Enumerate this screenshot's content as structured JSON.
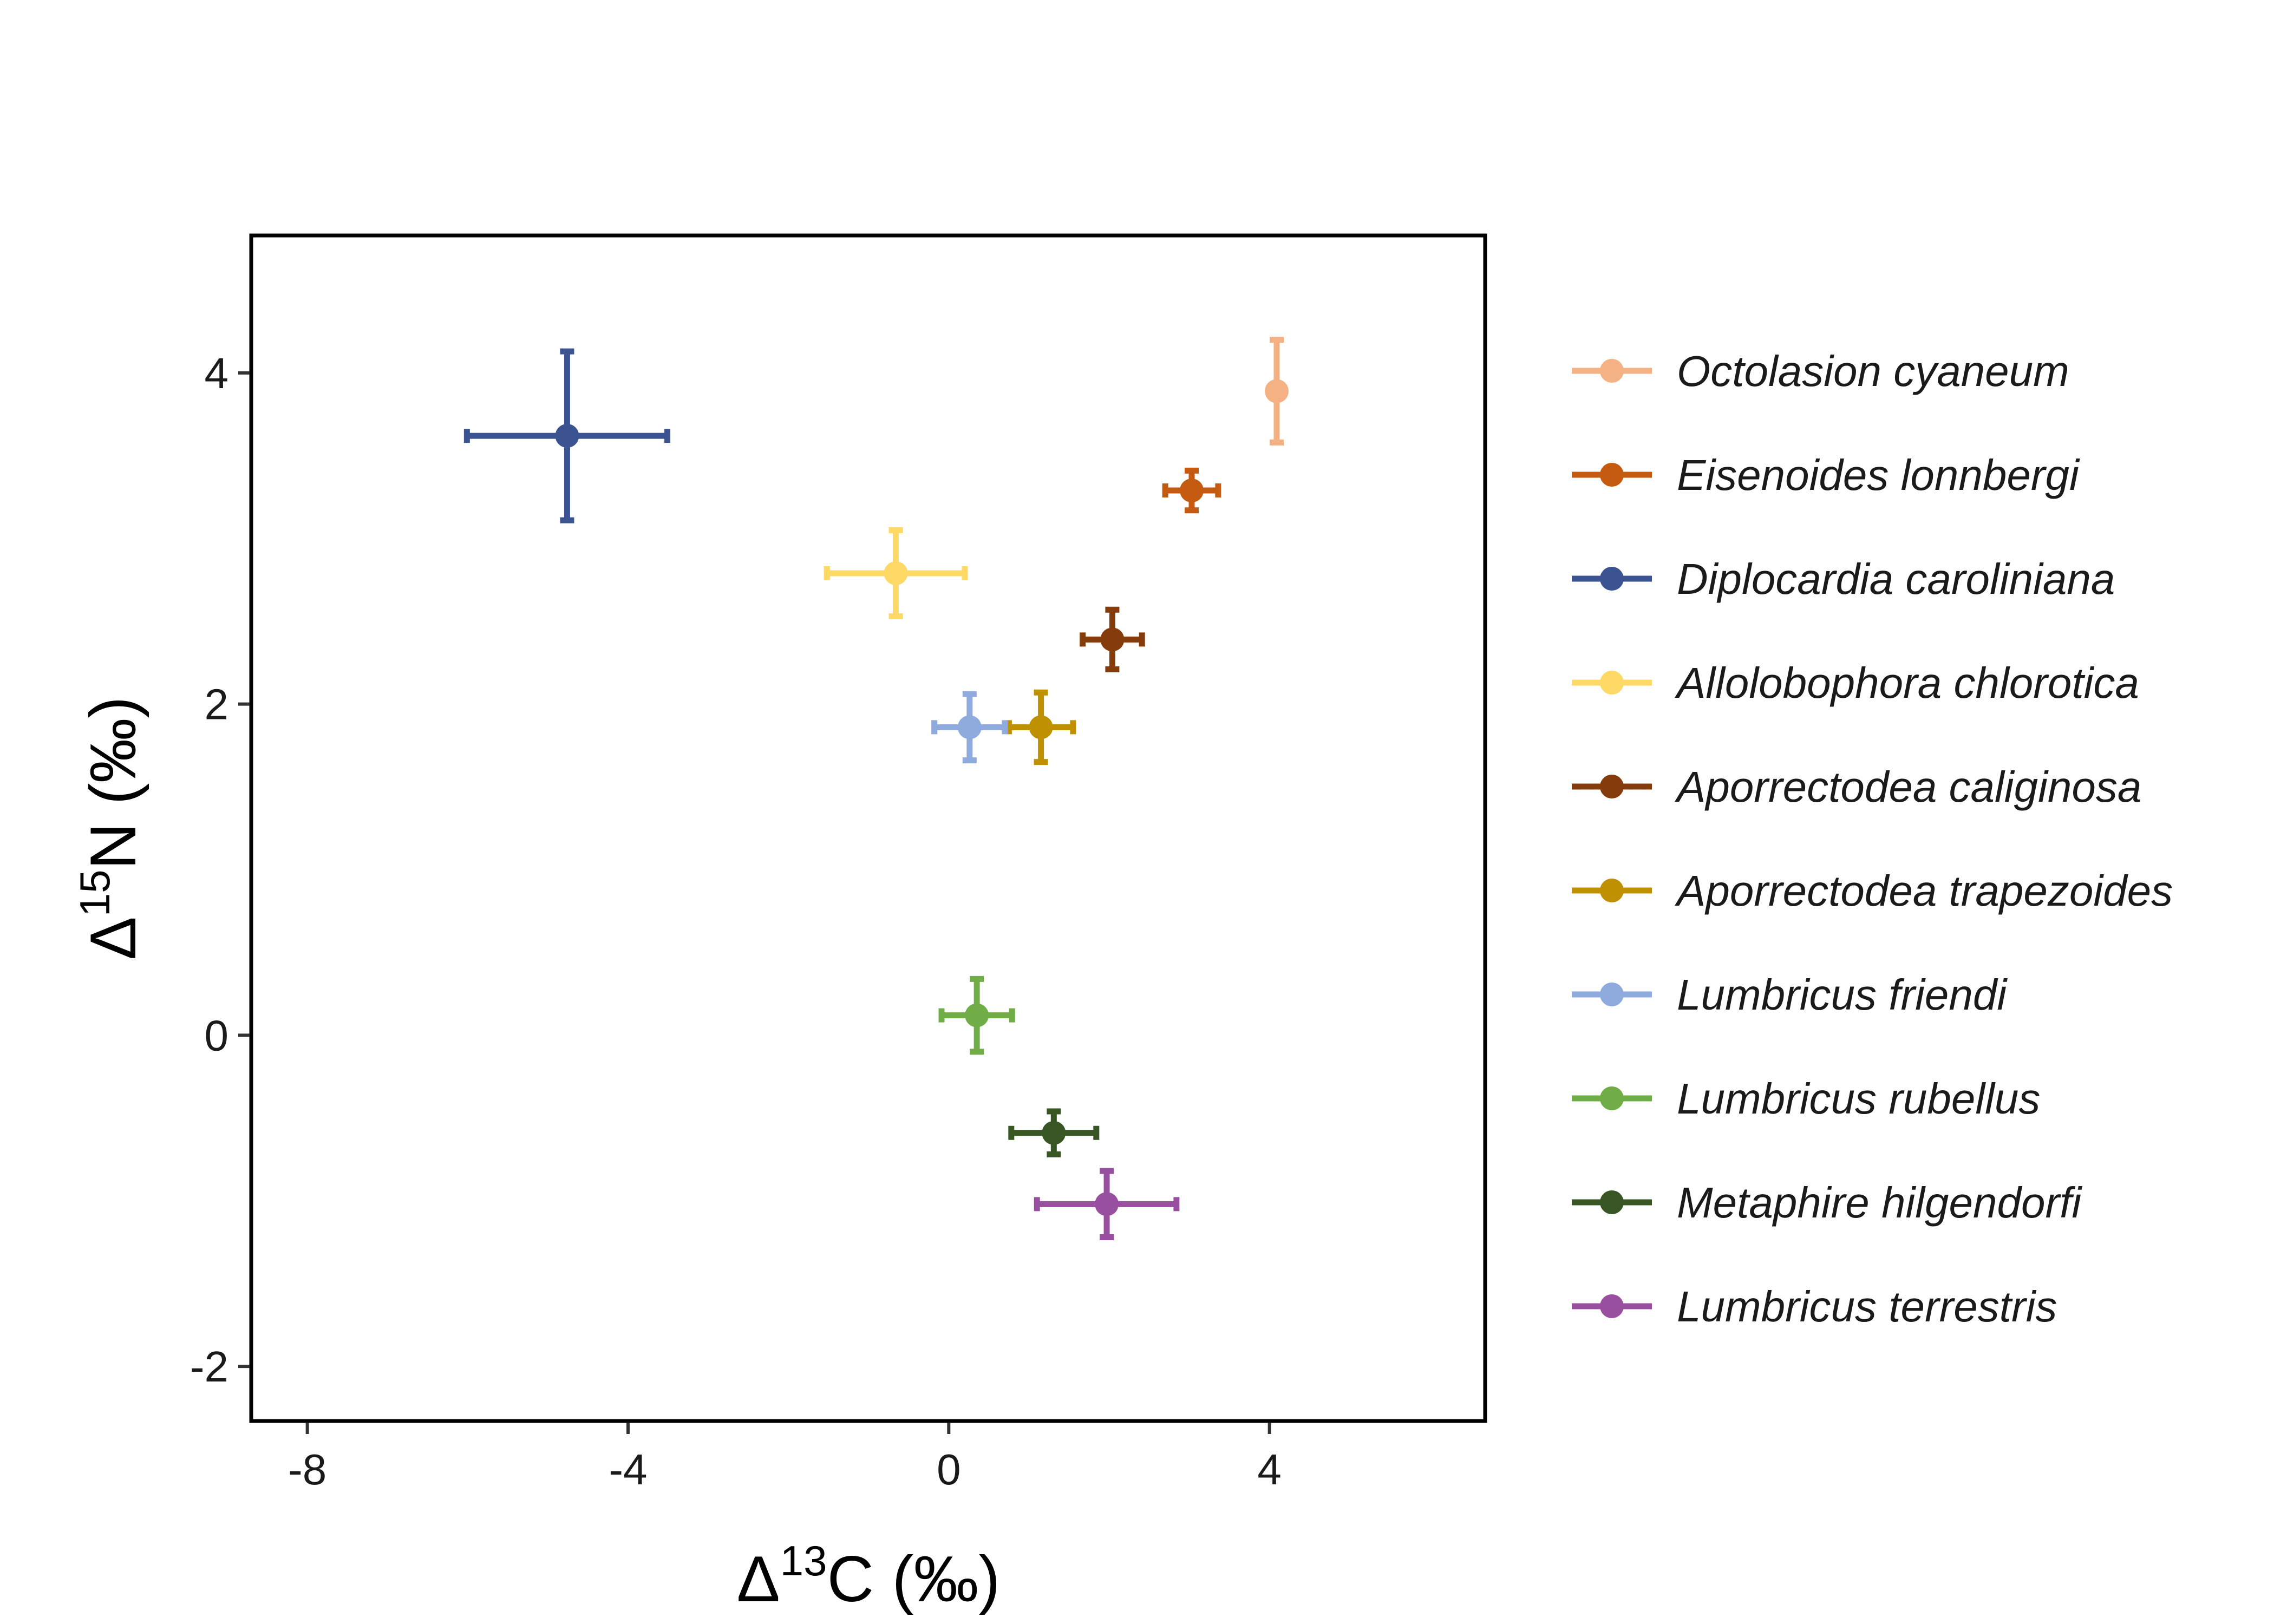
{
  "chart_data": {
    "type": "scatter",
    "xlabel": {
      "symbol": "Δ",
      "superscript": "13",
      "rest": "C (‰)"
    },
    "ylabel": {
      "symbol": "Δ",
      "superscript": "15",
      "rest": "N (‰)"
    },
    "xlim": [
      -8.7,
      6.69
    ],
    "ylim": [
      -2.33,
      4.83
    ],
    "x_ticks": [
      -8,
      -4,
      0,
      4
    ],
    "y_ticks": [
      -2,
      0,
      2,
      4
    ],
    "x_tick_labels": [
      "-8",
      "-4",
      "0",
      "4"
    ],
    "y_tick_labels": [
      "-2",
      "0",
      "2",
      "4"
    ],
    "grid": false,
    "error_bars": true,
    "legend_position": "right",
    "series": [
      {
        "name": "Octolasion cyaneum",
        "color": "#F4B183",
        "x": 4.09,
        "y": 3.89,
        "xerr": 0,
        "yerr": 0.31
      },
      {
        "name": "Eisenoides lonnbergi",
        "color": "#C55A11",
        "x": 3.03,
        "y": 3.29,
        "xerr": 0.33,
        "yerr": 0.12
      },
      {
        "name": "Diplocardia caroliniana",
        "color": "#3B5491",
        "x": -4.76,
        "y": 3.62,
        "xerr": 1.25,
        "yerr": 0.51
      },
      {
        "name": "Allolobophora chlorotica",
        "color": "#FFD966",
        "x": -0.66,
        "y": 2.79,
        "xerr": 0.86,
        "yerr": 0.26
      },
      {
        "name": "Aporrectodea caliginosa",
        "color": "#843C0C",
        "x": 2.04,
        "y": 2.39,
        "xerr": 0.37,
        "yerr": 0.18
      },
      {
        "name": "Aporrectodea trapezoides",
        "color": "#BF9000",
        "x": 1.15,
        "y": 1.86,
        "xerr": 0.4,
        "yerr": 0.21
      },
      {
        "name": "Lumbricus friendi",
        "color": "#8FAADC",
        "x": 0.26,
        "y": 1.86,
        "xerr": 0.44,
        "yerr": 0.2
      },
      {
        "name": "Lumbricus rubellus",
        "color": "#70AD47",
        "x": 0.35,
        "y": 0.12,
        "xerr": 0.44,
        "yerr": 0.22
      },
      {
        "name": "Metaphire hilgendorfi",
        "color": "#375623",
        "x": 1.31,
        "y": -0.59,
        "xerr": 0.53,
        "yerr": 0.13
      },
      {
        "name": "Lumbricus terrestris",
        "color": "#994F9F",
        "x": 1.97,
        "y": -1.02,
        "xerr": 0.87,
        "yerr": 0.2
      }
    ]
  }
}
